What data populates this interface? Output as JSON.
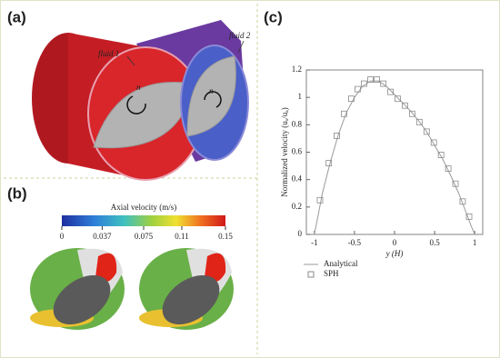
{
  "panels": {
    "a": {
      "label": "(a)",
      "fluid1": "fluid 1",
      "fluid2": "fluid 2",
      "n_left": "n",
      "n_right": "n"
    },
    "b": {
      "label": "(b)",
      "colorbar": {
        "title": "Axial velocity (m/s)",
        "lim": [
          0,
          0.15
        ],
        "ticks": [
          0,
          0.037,
          0.075,
          0.11,
          0.15
        ]
      }
    },
    "c": {
      "label": "(c)"
    }
  },
  "chart_data": {
    "type": "line",
    "xlabel": "y (H)",
    "ylabel": "Normalized velocity (uₓ/uₐ)",
    "xlim": [
      -1.1,
      1.1
    ],
    "ylim": [
      0,
      1.2
    ],
    "xticks": [
      -1,
      -0.5,
      0,
      0.5,
      1
    ],
    "yticks": [
      0,
      0.2,
      0.4,
      0.6,
      0.8,
      1,
      1.2
    ],
    "legend": "lower left",
    "series": [
      {
        "name": "Analytical",
        "color": "#9a9a9a",
        "marker": "none",
        "x": [
          -1,
          -0.9,
          -0.8,
          -0.7,
          -0.6,
          -0.5,
          -0.4,
          -0.3,
          -0.2,
          -0.1,
          0,
          0.1,
          0.2,
          0.3,
          0.4,
          0.5,
          0.6,
          0.7,
          0.8,
          0.9,
          0.95,
          1
        ],
        "values": [
          0,
          0.3,
          0.53,
          0.73,
          0.89,
          1.0,
          1.08,
          1.12,
          1.12,
          1.08,
          1.02,
          0.96,
          0.9,
          0.83,
          0.75,
          0.65,
          0.55,
          0.43,
          0.3,
          0.15,
          0.07,
          0
        ]
      },
      {
        "name": "SPH",
        "color": "#8a8a8a",
        "marker": "square",
        "x": [
          -0.93,
          -0.82,
          -0.72,
          -0.63,
          -0.54,
          -0.46,
          -0.38,
          -0.3,
          -0.22,
          -0.14,
          -0.05,
          0.04,
          0.13,
          0.22,
          0.31,
          0.4,
          0.49,
          0.58,
          0.67,
          0.76,
          0.85,
          0.93
        ],
        "values": [
          0.25,
          0.52,
          0.72,
          0.88,
          0.99,
          1.06,
          1.1,
          1.13,
          1.13,
          1.1,
          1.04,
          0.99,
          0.94,
          0.88,
          0.82,
          0.75,
          0.67,
          0.58,
          0.48,
          0.37,
          0.24,
          0.13
        ]
      }
    ]
  }
}
